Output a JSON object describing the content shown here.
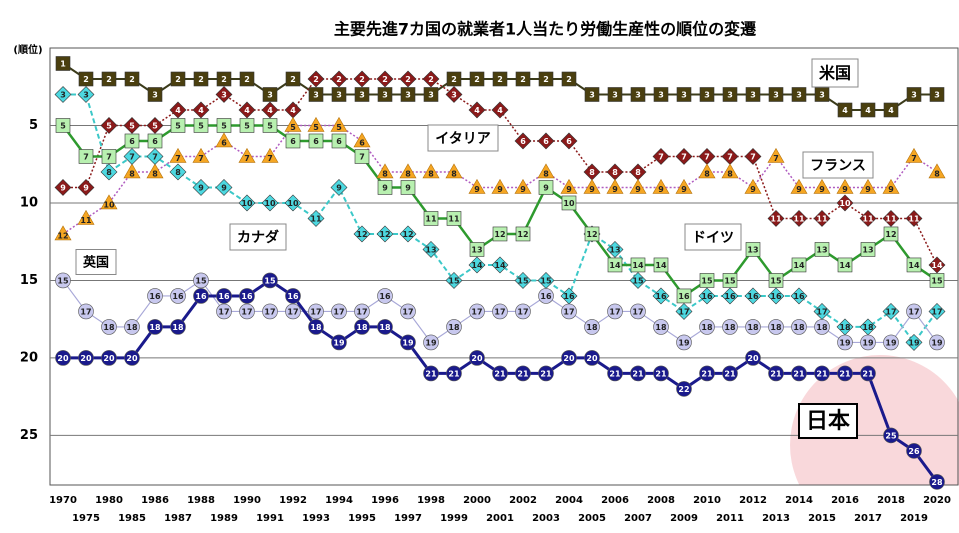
{
  "chart_data": {
    "type": "line",
    "title": "主要先進7カ国の就業者1人当たり労働生産性の順位の変遷",
    "y_label": "(順位)",
    "y_reversed": true,
    "categories": [
      "1970",
      "1975",
      "1980",
      "1985",
      "1986",
      "1987",
      "1988",
      "1989",
      "1990",
      "1991",
      "1992",
      "1993",
      "1994",
      "1995",
      "1996",
      "1997",
      "1998",
      "1999",
      "2000",
      "2001",
      "2002",
      "2003",
      "2004",
      "2005",
      "2006",
      "2007",
      "2008",
      "2009",
      "2010",
      "2011",
      "2012",
      "2013",
      "2014",
      "2015",
      "2016",
      "2017",
      "2018",
      "2019",
      "2020"
    ],
    "ylim": [
      0,
      28.2
    ],
    "yticks": [
      5,
      10,
      15,
      20,
      25
    ],
    "grid": true,
    "series": [
      {
        "name": "米国",
        "color": "#3b3b1a",
        "marker": "square",
        "marker_color": "#4a3f0f",
        "values": [
          1,
          2,
          2,
          2,
          3,
          2,
          2,
          2,
          2,
          3,
          2,
          3,
          3,
          3,
          3,
          3,
          3,
          2,
          2,
          2,
          2,
          2,
          2,
          3,
          3,
          3,
          3,
          3,
          3,
          3,
          3,
          3,
          3,
          3,
          4,
          4,
          4,
          3,
          3
        ]
      },
      {
        "name": "イタリア",
        "color": "#8b1a1a",
        "marker": "diamond",
        "marker_color": "#8b1a1a",
        "values": [
          9,
          9,
          5,
          5,
          5,
          4,
          4,
          3,
          4,
          4,
          4,
          2,
          2,
          2,
          2,
          2,
          2,
          3,
          4,
          4,
          6,
          6,
          6,
          8,
          8,
          8,
          7,
          7,
          7,
          7,
          7,
          11,
          11,
          11,
          10,
          11,
          11,
          11,
          14
        ]
      },
      {
        "name": "フランス",
        "color": "#b05cc0",
        "marker": "triangle",
        "marker_color": "#f5a623",
        "values": [
          12,
          11,
          10,
          8,
          8,
          7,
          7,
          6,
          7,
          7,
          5,
          5,
          5,
          6,
          8,
          8,
          8,
          8,
          9,
          9,
          9,
          8,
          9,
          9,
          9,
          9,
          9,
          9,
          8,
          8,
          9,
          7,
          9,
          9,
          9,
          9,
          9,
          7,
          8
        ]
      },
      {
        "name": "カナダ",
        "color": "#3cc8c8",
        "marker": "diamond",
        "marker_color": "#4dd8e0",
        "dashed": true,
        "values": [
          3,
          3,
          8,
          7,
          7,
          8,
          9,
          9,
          10,
          10,
          10,
          11,
          9,
          12,
          12,
          12,
          13,
          15,
          14,
          14,
          15,
          15,
          16,
          12,
          13,
          15,
          16,
          17,
          16,
          16,
          16,
          16,
          16,
          17,
          18,
          18,
          17,
          19,
          17
        ]
      },
      {
        "name": "ドイツ",
        "color": "#2e9a2e",
        "marker": "square",
        "marker_color": "#b8f0b0",
        "values": [
          5,
          7,
          7,
          6,
          6,
          5,
          5,
          5,
          5,
          5,
          6,
          6,
          6,
          7,
          9,
          9,
          11,
          11,
          13,
          12,
          12,
          9,
          10,
          12,
          14,
          14,
          14,
          16,
          15,
          15,
          13,
          15,
          14,
          13,
          14,
          13,
          12,
          14,
          15
        ]
      },
      {
        "name": "英国",
        "color": "#a8a8d8",
        "marker": "circle",
        "marker_color": "#c8c8ee",
        "values": [
          15,
          17,
          18,
          18,
          16,
          16,
          15,
          17,
          17,
          17,
          17,
          17,
          17,
          17,
          16,
          17,
          19,
          18,
          17,
          17,
          17,
          16,
          17,
          18,
          17,
          17,
          18,
          19,
          18,
          18,
          18,
          18,
          18,
          18,
          19,
          19,
          19,
          17,
          19
        ]
      },
      {
        "name": "日本",
        "color": "#1a1a8c",
        "marker": "circle",
        "marker_color": "#1a1a8c",
        "values": [
          20,
          20,
          20,
          20,
          18,
          18,
          16,
          16,
          16,
          15,
          16,
          18,
          19,
          18,
          18,
          19,
          21,
          21,
          20,
          21,
          21,
          21,
          20,
          20,
          21,
          21,
          21,
          22,
          21,
          21,
          20,
          21,
          21,
          21,
          21,
          21,
          25,
          26,
          28
        ]
      }
    ]
  }
}
